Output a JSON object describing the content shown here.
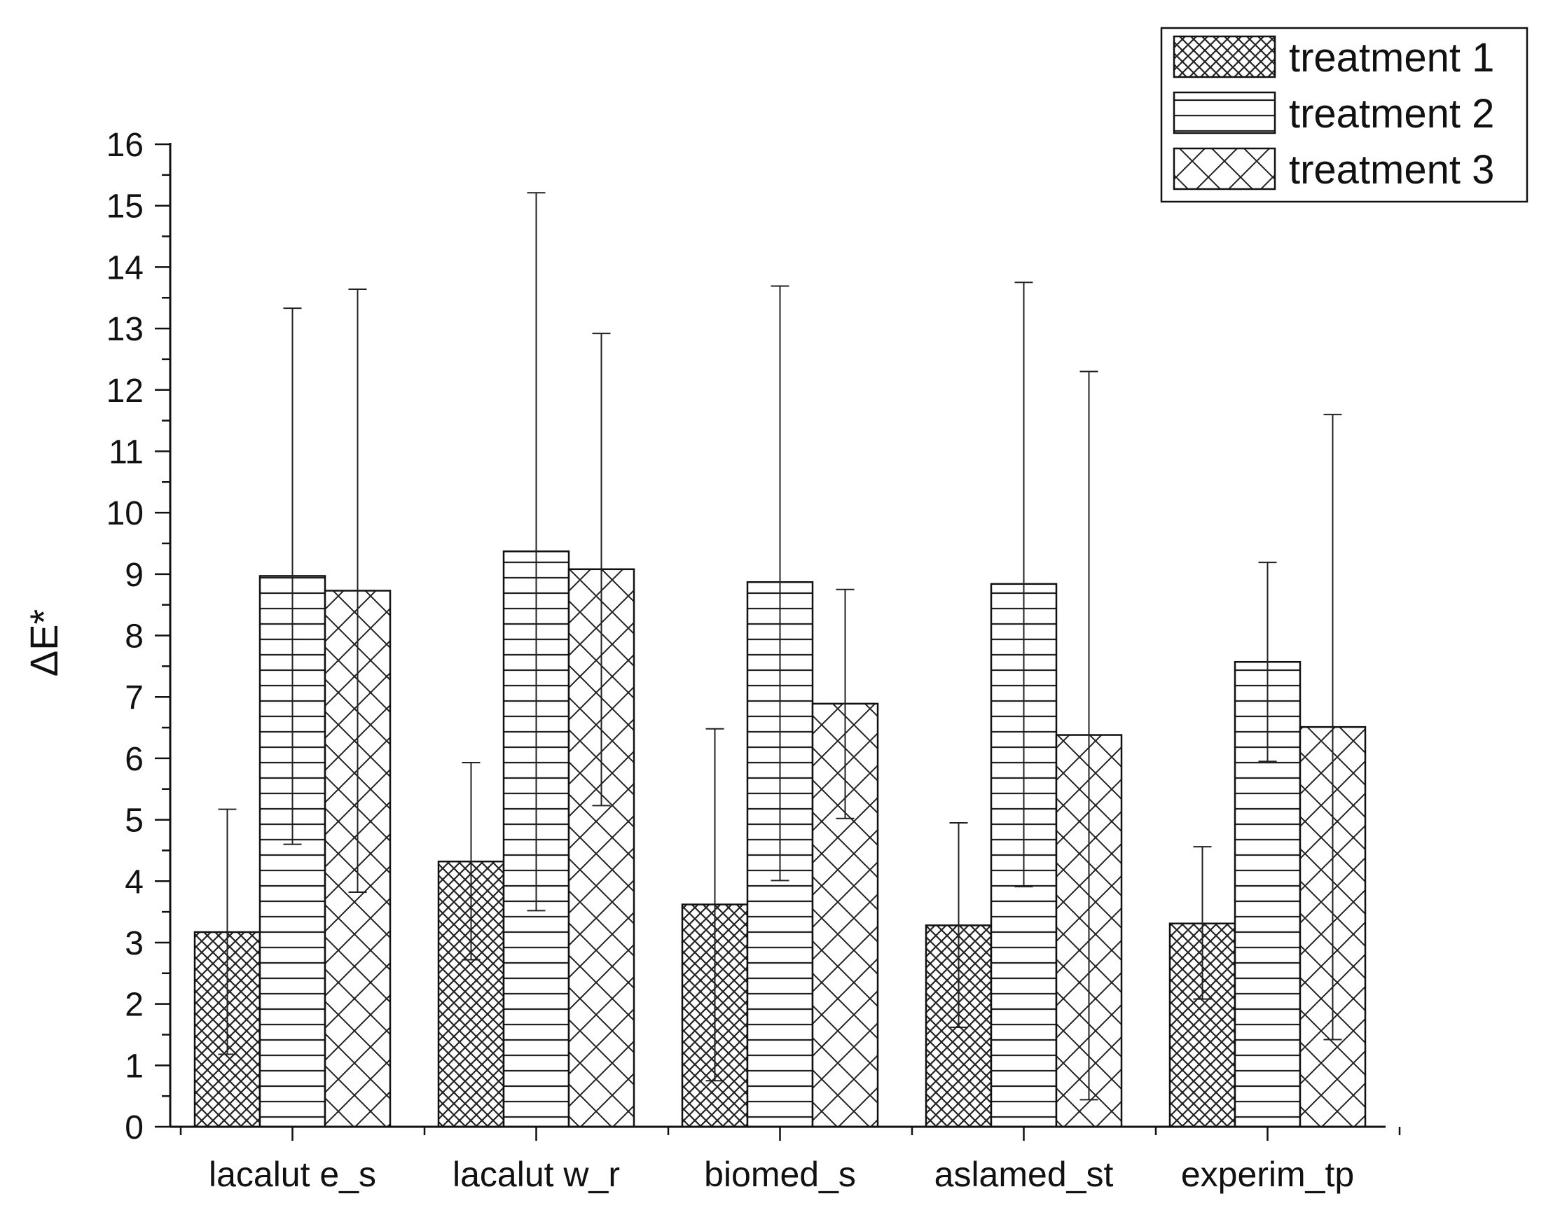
{
  "chart_data": {
    "type": "bar",
    "title": "",
    "xlabel": "",
    "ylabel": "ΔE*",
    "ylim": [
      0,
      16
    ],
    "yticks": [
      0,
      1,
      2,
      3,
      4,
      5,
      6,
      7,
      8,
      9,
      10,
      11,
      12,
      13,
      14,
      15,
      16
    ],
    "grid": false,
    "legend_position": "top-right",
    "categories": [
      "lacalut e_s",
      "lacalut w_r",
      "biomed_s",
      "aslamed_st",
      "experim_tp"
    ],
    "series": [
      {
        "name": "treatment 1",
        "pattern": "fine-crosshatch",
        "values": [
          3.17,
          4.32,
          3.62,
          3.28,
          3.31
        ],
        "error_low": [
          1.18,
          2.72,
          0.75,
          1.62,
          2.08
        ],
        "error_high": [
          5.17,
          5.93,
          6.48,
          4.95,
          4.56
        ]
      },
      {
        "name": "treatment 2",
        "pattern": "horizontal-lines",
        "values": [
          8.97,
          9.37,
          8.87,
          8.84,
          7.57
        ],
        "error_low": [
          4.6,
          3.52,
          4.01,
          3.91,
          5.95
        ],
        "error_high": [
          13.33,
          15.21,
          13.69,
          13.75,
          9.19
        ]
      },
      {
        "name": "treatment 3",
        "pattern": "diagonal-crosshatch",
        "values": [
          8.73,
          9.08,
          6.89,
          6.38,
          6.51
        ],
        "error_low": [
          3.82,
          5.23,
          5.02,
          0.44,
          1.42
        ],
        "error_high": [
          13.64,
          12.92,
          8.75,
          12.3,
          11.6
        ]
      }
    ]
  }
}
